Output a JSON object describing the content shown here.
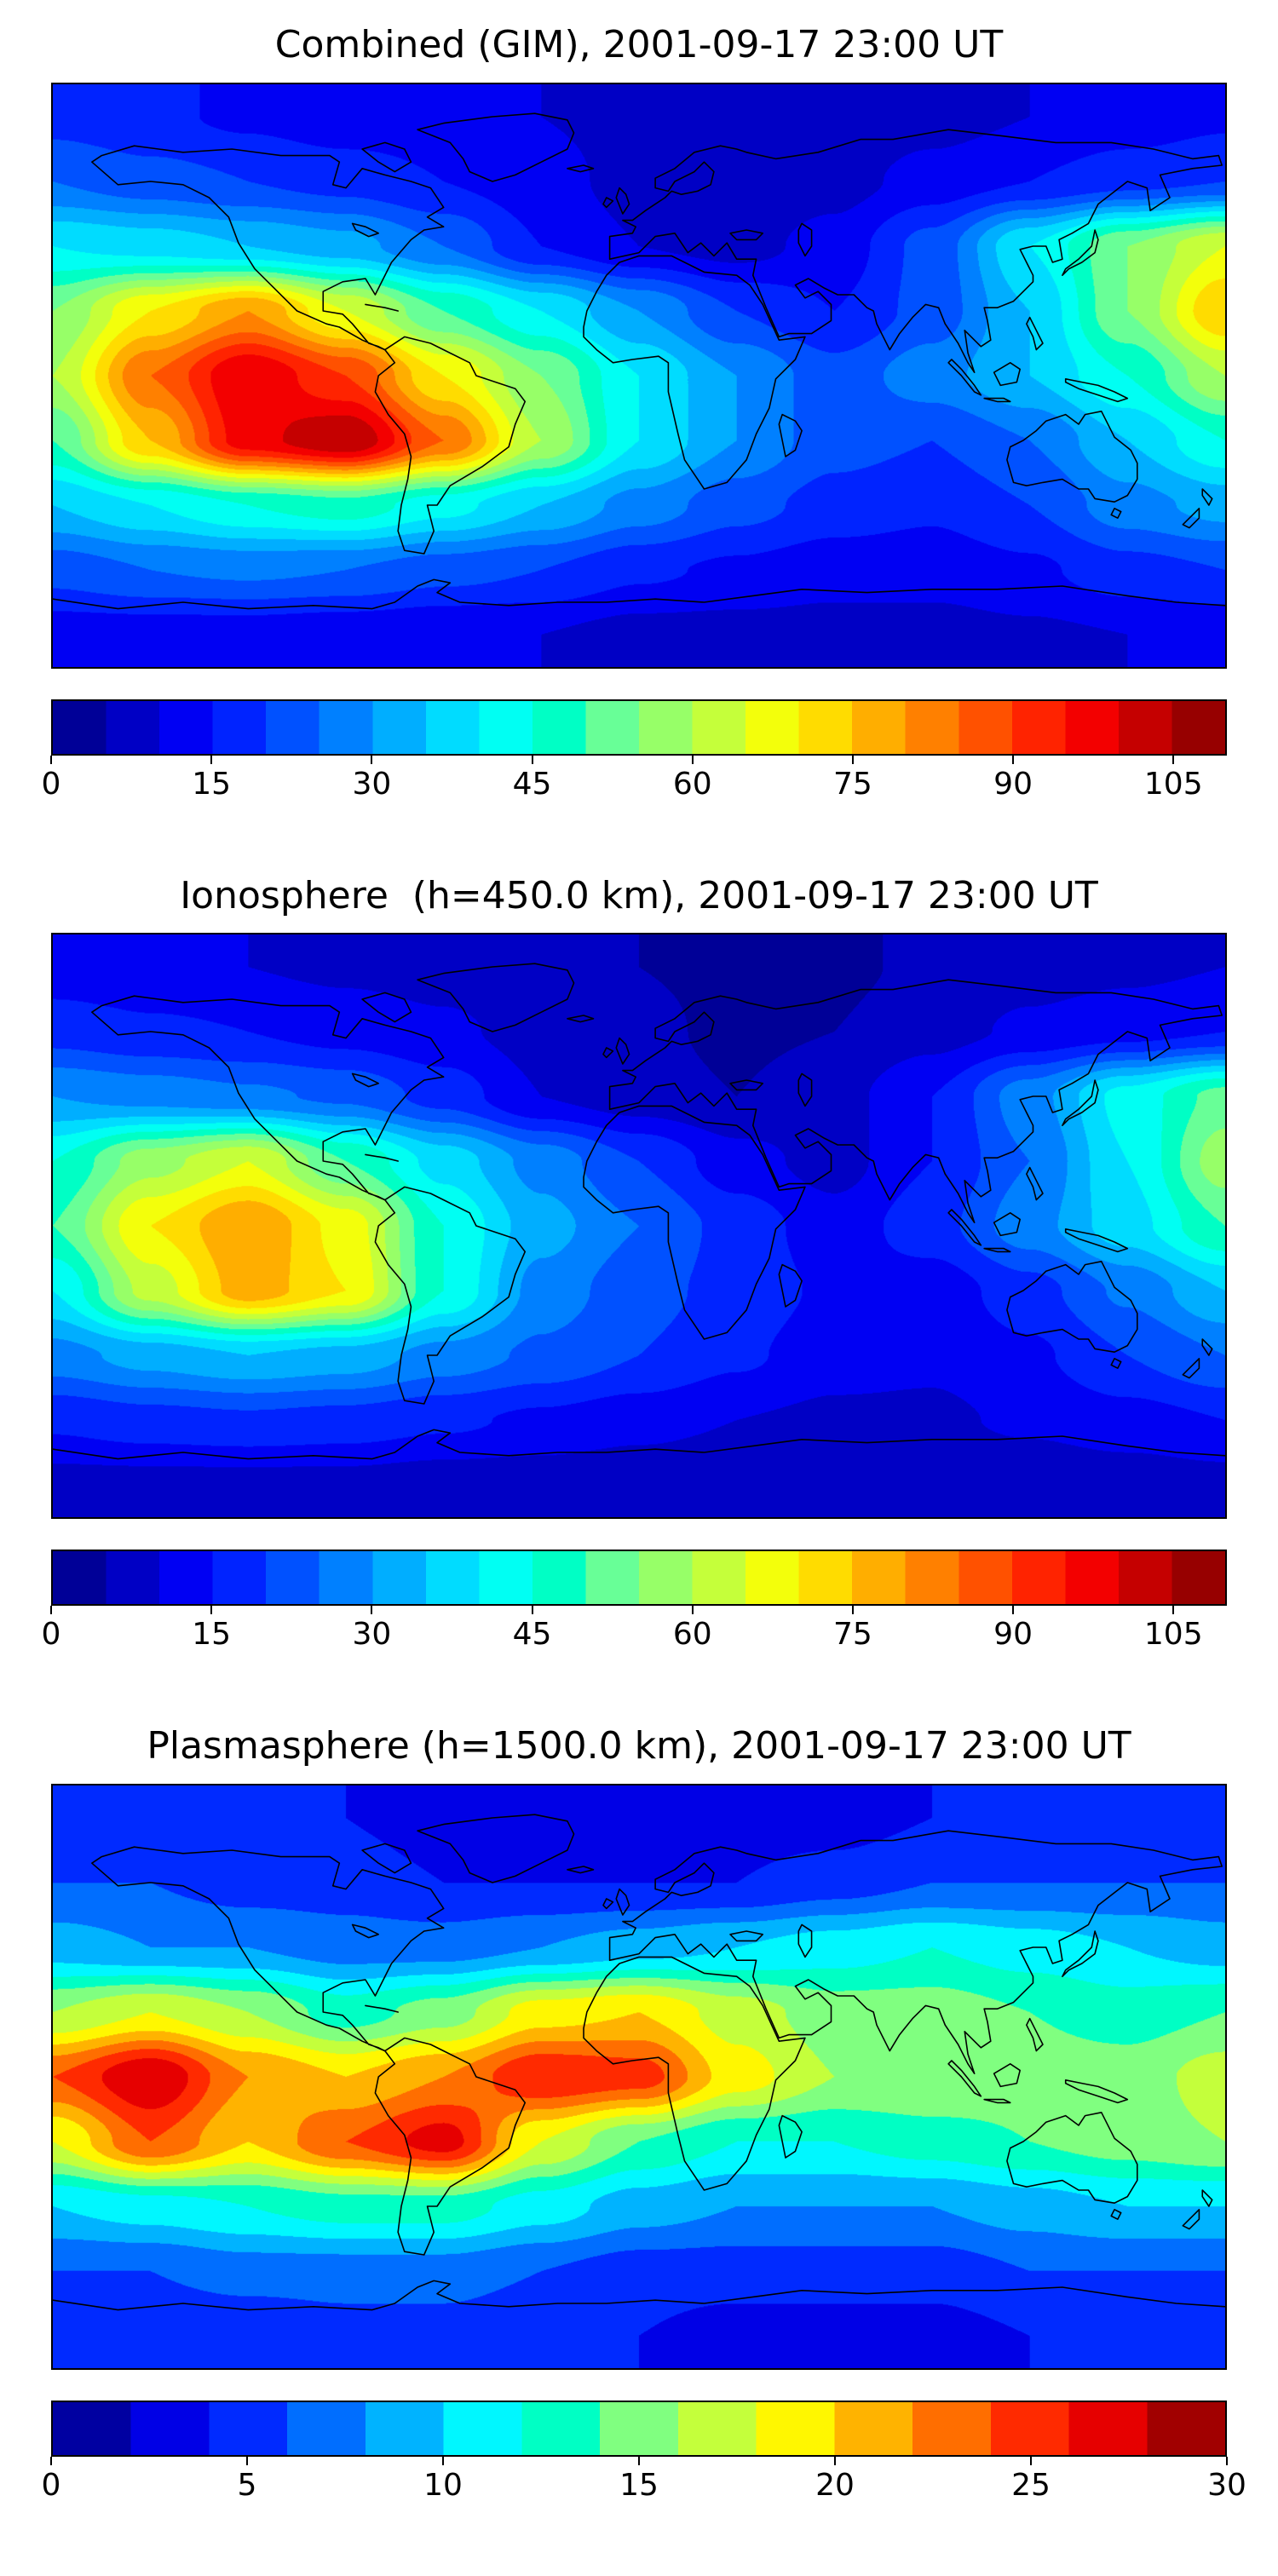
{
  "figure": {
    "background": "#ffffff",
    "map_border_color": "#000000",
    "coastline_color": "#000000"
  },
  "chart_data": [
    {
      "type": "heatmap",
      "title": "Combined (GIM), 2001-09-17 23:00 UT",
      "colormap": "jet",
      "projection": "equirectangular lon -180..180, lat -90..90",
      "vmin": 0,
      "vmax": 110,
      "level_step": 5,
      "colorbar_ticks": [
        0,
        15,
        30,
        45,
        60,
        75,
        90,
        105
      ],
      "palette": [
        "#000097",
        "#0000C5",
        "#0000F3",
        "#0023FF",
        "#0051FF",
        "#0080FF",
        "#00AEFF",
        "#00DCFF",
        "#00FFF3",
        "#00FFC5",
        "#68FF97",
        "#97FF68",
        "#C5FF3A",
        "#F3FF0B",
        "#FFDC00",
        "#FFAE00",
        "#FF8000",
        "#FF5100",
        "#FF2300",
        "#F30000",
        "#C50000",
        "#970000"
      ],
      "lats": [
        80,
        60,
        40,
        20,
        0,
        -20,
        -40,
        -60,
        -80
      ],
      "lons": [
        -180,
        -150,
        -120,
        -90,
        -60,
        -30,
        0,
        30,
        60,
        90,
        120,
        150,
        180
      ],
      "values": [
        [
          18,
          16,
          14,
          12,
          12,
          10,
          8,
          6,
          6,
          8,
          10,
          12,
          14
        ],
        [
          25,
          22,
          20,
          18,
          15,
          12,
          8,
          6,
          8,
          12,
          15,
          18,
          20
        ],
        [
          40,
          38,
          35,
          32,
          25,
          15,
          10,
          8,
          12,
          22,
          40,
          55,
          65
        ],
        [
          55,
          70,
          80,
          65,
          50,
          40,
          30,
          20,
          15,
          22,
          35,
          55,
          75
        ],
        [
          60,
          85,
          100,
          90,
          70,
          55,
          40,
          30,
          22,
          28,
          35,
          45,
          60
        ],
        [
          50,
          75,
          98,
          105,
          85,
          60,
          40,
          30,
          22,
          20,
          25,
          35,
          45
        ],
        [
          35,
          40,
          45,
          48,
          42,
          35,
          28,
          22,
          18,
          16,
          20,
          28,
          32
        ],
        [
          22,
          25,
          26,
          25,
          22,
          20,
          16,
          14,
          12,
          12,
          14,
          18,
          20
        ],
        [
          12,
          12,
          12,
          11,
          10,
          10,
          8,
          8,
          8,
          8,
          9,
          10,
          11
        ]
      ]
    },
    {
      "type": "heatmap",
      "title": "Ionosphere  (h=450.0 km), 2001-09-17 23:00 UT",
      "colormap": "jet",
      "projection": "equirectangular lon -180..180, lat -90..90",
      "vmin": 0,
      "vmax": 110,
      "level_step": 5,
      "colorbar_ticks": [
        0,
        15,
        30,
        45,
        60,
        75,
        90,
        105
      ],
      "palette": [
        "#000097",
        "#0000C5",
        "#0000F3",
        "#0023FF",
        "#0051FF",
        "#0080FF",
        "#00AEFF",
        "#00DCFF",
        "#00FFF3",
        "#00FFC5",
        "#68FF97",
        "#97FF68",
        "#C5FF3A",
        "#F3FF0B",
        "#FFDC00",
        "#FFAE00",
        "#FF8000",
        "#FF5100",
        "#FF2300",
        "#F30000",
        "#C50000",
        "#970000"
      ],
      "lats": [
        80,
        60,
        40,
        20,
        0,
        -20,
        -40,
        -60,
        -80
      ],
      "lons": [
        -180,
        -150,
        -120,
        -90,
        -60,
        -30,
        0,
        30,
        60,
        90,
        120,
        150,
        180
      ],
      "values": [
        [
          12,
          11,
          10,
          9,
          8,
          6,
          5,
          4,
          4,
          6,
          8,
          9,
          10
        ],
        [
          18,
          16,
          15,
          13,
          11,
          8,
          6,
          4,
          5,
          8,
          11,
          13,
          15
        ],
        [
          30,
          28,
          26,
          24,
          18,
          10,
          7,
          5,
          8,
          15,
          28,
          42,
          52
        ],
        [
          45,
          58,
          65,
          50,
          38,
          28,
          20,
          12,
          8,
          15,
          25,
          40,
          58
        ],
        [
          50,
          70,
          80,
          68,
          45,
          32,
          25,
          18,
          12,
          18,
          28,
          38,
          50
        ],
        [
          40,
          62,
          78,
          70,
          45,
          28,
          22,
          18,
          14,
          12,
          18,
          26,
          35
        ],
        [
          28,
          32,
          35,
          33,
          28,
          24,
          20,
          16,
          12,
          11,
          14,
          20,
          25
        ],
        [
          16,
          18,
          19,
          18,
          16,
          14,
          12,
          10,
          9,
          9,
          11,
          13,
          15
        ],
        [
          8,
          8,
          8,
          8,
          7,
          7,
          6,
          5,
          5,
          5,
          6,
          7,
          8
        ]
      ]
    },
    {
      "type": "heatmap",
      "title": "Plasmasphere (h=1500.0 km), 2001-09-17 23:00 UT",
      "colormap": "jet",
      "projection": "equirectangular lon -180..180, lat -90..90",
      "vmin": 0,
      "vmax": 30,
      "level_step": 2,
      "colorbar_ticks": [
        0,
        5,
        10,
        15,
        20,
        25,
        30
      ],
      "palette": [
        "#0000A1",
        "#0000E6",
        "#002AFF",
        "#006EFF",
        "#00B3FF",
        "#00F7FF",
        "#00FFC4",
        "#80FF80",
        "#C4FF3B",
        "#FFF700",
        "#FFB300",
        "#FF6E00",
        "#FF2A00",
        "#E60000",
        "#A10000"
      ],
      "lats": [
        80,
        60,
        40,
        20,
        0,
        -20,
        -40,
        -60,
        -80
      ],
      "lons": [
        -180,
        -150,
        -120,
        -90,
        -60,
        -30,
        0,
        30,
        60,
        90,
        120,
        150,
        180
      ],
      "values": [
        [
          5,
          5,
          4,
          4,
          3,
          3,
          3,
          3,
          3,
          4,
          4,
          5,
          5
        ],
        [
          6,
          6,
          5,
          5,
          4,
          4,
          4,
          4,
          5,
          6,
          6,
          6,
          6
        ],
        [
          9,
          8,
          8,
          7,
          7,
          8,
          9,
          10,
          11,
          12,
          11,
          10,
          9
        ],
        [
          16,
          18,
          16,
          13,
          15,
          19,
          20,
          17,
          15,
          15,
          14,
          13,
          14
        ],
        [
          24,
          28,
          22,
          20,
          22,
          26,
          25,
          19,
          16,
          16,
          15,
          15,
          17
        ],
        [
          18,
          24,
          20,
          24,
          27,
          18,
          14,
          12,
          12,
          13,
          14,
          15,
          16
        ],
        [
          10,
          11,
          12,
          13,
          13,
          11,
          9,
          8,
          8,
          8,
          9,
          10,
          10
        ],
        [
          6,
          6,
          7,
          7,
          7,
          6,
          5,
          5,
          5,
          5,
          6,
          6,
          6
        ],
        [
          4,
          4,
          4,
          5,
          5,
          4,
          4,
          3,
          3,
          3,
          4,
          4,
          4
        ]
      ]
    }
  ]
}
